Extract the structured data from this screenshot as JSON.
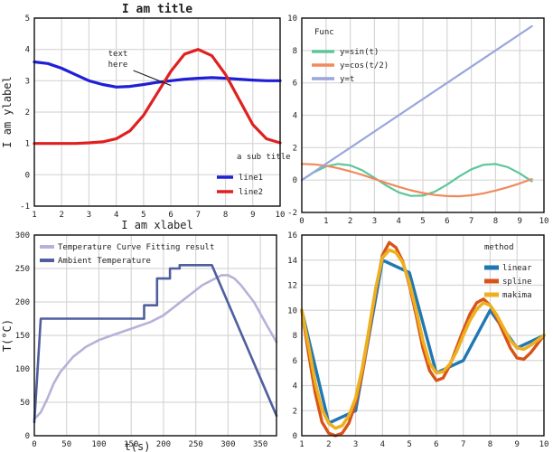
{
  "chart_data": [
    {
      "type": "line",
      "title": "I am title",
      "xlabel": "I am xlabel",
      "ylabel": "I am ylabel",
      "subtitle": "a sub title",
      "xlim": [
        1,
        10
      ],
      "ylim": [
        -1,
        5
      ],
      "xticks": [
        1,
        2,
        3,
        4,
        5,
        6,
        7,
        8,
        9,
        10
      ],
      "yticks": [
        -1,
        0,
        1,
        2,
        3,
        4,
        5
      ],
      "grid": true,
      "legend_position": "bottom-right",
      "annotation": {
        "text": [
          "text",
          "here"
        ],
        "x": 3.9,
        "y": 3.5,
        "arrow_to": [
          6.0,
          2.85
        ]
      },
      "series": [
        {
          "name": "line1",
          "color": "#1f1fd6",
          "x": [
            1,
            1.5,
            2,
            2.5,
            3,
            3.5,
            4,
            4.5,
            5,
            5.5,
            6,
            6.5,
            7,
            7.5,
            8,
            8.5,
            9,
            9.5,
            10
          ],
          "y": [
            3.6,
            3.55,
            3.4,
            3.2,
            3.0,
            2.88,
            2.8,
            2.82,
            2.88,
            2.95,
            3.0,
            3.05,
            3.08,
            3.1,
            3.08,
            3.05,
            3.02,
            3.0,
            3.0
          ]
        },
        {
          "name": "line2",
          "color": "#e02020",
          "x": [
            1,
            1.5,
            2,
            2.5,
            3,
            3.5,
            4,
            4.5,
            5,
            5.5,
            6,
            6.5,
            7,
            7.5,
            8,
            8.5,
            9,
            9.5,
            10
          ],
          "y": [
            1.0,
            1.0,
            1.0,
            1.0,
            1.02,
            1.05,
            1.15,
            1.4,
            1.9,
            2.6,
            3.3,
            3.85,
            4.0,
            3.8,
            3.2,
            2.4,
            1.6,
            1.15,
            1.02
          ]
        }
      ]
    },
    {
      "type": "line",
      "title": "",
      "legend_title": "Func",
      "xlim": [
        0,
        10
      ],
      "ylim": [
        -2,
        10
      ],
      "xticks": [
        0,
        1,
        2,
        3,
        4,
        5,
        6,
        7,
        8,
        9,
        10
      ],
      "yticks": [
        -2,
        0,
        2,
        4,
        6,
        8,
        10
      ],
      "grid": true,
      "legend_position": "top-left",
      "series": [
        {
          "name": "y=sin(t)",
          "color": "#5ec79a",
          "x": [
            0,
            0.5,
            1,
            1.5,
            2,
            2.5,
            3,
            3.5,
            4,
            4.5,
            5,
            5.5,
            6,
            6.5,
            7,
            7.5,
            8,
            8.5,
            9,
            9.5
          ],
          "y": [
            0,
            0.48,
            0.84,
            1.0,
            0.91,
            0.6,
            0.14,
            -0.35,
            -0.76,
            -0.98,
            -0.96,
            -0.71,
            -0.28,
            0.22,
            0.66,
            0.94,
            0.99,
            0.8,
            0.41,
            -0.08
          ]
        },
        {
          "name": "y=cos(t/2)",
          "color": "#f08a5d",
          "x": [
            0,
            0.5,
            1,
            1.5,
            2,
            2.5,
            3,
            3.5,
            4,
            4.5,
            5,
            5.5,
            6,
            6.5,
            7,
            7.5,
            8,
            8.5,
            9,
            9.5
          ],
          "y": [
            1,
            0.97,
            0.88,
            0.73,
            0.54,
            0.32,
            0.07,
            -0.18,
            -0.42,
            -0.63,
            -0.8,
            -0.92,
            -0.99,
            -1.0,
            -0.94,
            -0.82,
            -0.65,
            -0.45,
            -0.21,
            0.06
          ]
        },
        {
          "name": "y=t",
          "color": "#9aa6dc",
          "x": [
            0,
            9.5
          ],
          "y": [
            0,
            9.5
          ]
        }
      ]
    },
    {
      "type": "line",
      "title": "",
      "xlabel": "t(s)",
      "ylabel": "T(°C)",
      "xlim": [
        0,
        375
      ],
      "ylim": [
        0,
        300
      ],
      "xticks": [
        0,
        50,
        100,
        150,
        200,
        250,
        300,
        350
      ],
      "yticks": [
        0,
        50,
        100,
        150,
        200,
        250,
        300
      ],
      "grid": true,
      "legend_position": "top-left",
      "series": [
        {
          "name": "Temperature Curve Fitting result",
          "color": "#b7b1d8",
          "x": [
            0,
            10,
            20,
            30,
            40,
            60,
            80,
            100,
            120,
            150,
            180,
            200,
            220,
            240,
            260,
            280,
            290,
            300,
            310,
            320,
            340,
            360,
            375
          ],
          "y": [
            25,
            35,
            55,
            78,
            95,
            118,
            133,
            143,
            150,
            160,
            170,
            180,
            195,
            210,
            225,
            235,
            240,
            240,
            235,
            225,
            200,
            165,
            140
          ]
        },
        {
          "name": "Ambient Temperature",
          "color": "#4f5e9e",
          "x": [
            0,
            10,
            20,
            170,
            170,
            190,
            190,
            210,
            210,
            225,
            225,
            275,
            275,
            375
          ],
          "y": [
            20,
            175,
            175,
            175,
            195,
            195,
            235,
            235,
            250,
            250,
            255,
            255,
            255,
            30
          ]
        }
      ]
    },
    {
      "type": "line",
      "title": "",
      "legend_title": "method",
      "xlim": [
        1,
        10
      ],
      "ylim": [
        0,
        16
      ],
      "xticks": [
        1,
        2,
        3,
        4,
        5,
        6,
        7,
        8,
        9,
        10
      ],
      "yticks": [
        0,
        2,
        4,
        6,
        8,
        10,
        12,
        14,
        16
      ],
      "grid": true,
      "legend_position": "top-right",
      "series": [
        {
          "name": "linear",
          "color": "#1f77b4",
          "x": [
            1,
            2,
            3,
            4,
            5,
            6,
            7,
            8,
            9,
            10
          ],
          "y": [
            10,
            1,
            2,
            14,
            13,
            5,
            6,
            10,
            7,
            8
          ]
        },
        {
          "name": "spline",
          "color": "#d95319",
          "x": [
            1,
            1.25,
            1.5,
            1.75,
            2,
            2.25,
            2.5,
            2.75,
            3,
            3.25,
            3.5,
            3.75,
            4,
            4.25,
            4.5,
            4.75,
            5,
            5.25,
            5.5,
            5.75,
            6,
            6.25,
            6.5,
            6.75,
            7,
            7.25,
            7.5,
            7.75,
            8,
            8.25,
            8.5,
            8.75,
            9,
            9.25,
            9.5,
            9.75,
            10
          ],
          "y": [
            10,
            6.6,
            3.4,
            1.1,
            0.2,
            0.0,
            0.2,
            1.0,
            2.6,
            5.0,
            8.2,
            11.6,
            14.4,
            15.4,
            15.0,
            13.9,
            12.0,
            9.6,
            7.0,
            5.2,
            4.4,
            4.6,
            5.6,
            7.0,
            8.4,
            9.7,
            10.6,
            10.9,
            10.4,
            9.4,
            8.2,
            7.0,
            6.2,
            6.1,
            6.6,
            7.3,
            8.0
          ]
        },
        {
          "name": "makima",
          "color": "#edb120",
          "x": [
            1,
            1.25,
            1.5,
            1.75,
            2,
            2.25,
            2.5,
            2.75,
            3,
            3.25,
            3.5,
            3.75,
            4,
            4.25,
            4.5,
            4.75,
            5,
            5.25,
            5.5,
            5.75,
            6,
            6.25,
            6.5,
            6.75,
            7,
            7.25,
            7.5,
            7.75,
            8,
            8.25,
            8.5,
            8.75,
            9,
            9.25,
            9.5,
            9.75,
            10
          ],
          "y": [
            10,
            7.2,
            4.2,
            2.1,
            1.0,
            0.6,
            0.8,
            1.6,
            3.0,
            5.4,
            8.5,
            11.8,
            14.2,
            14.8,
            14.6,
            13.8,
            12.2,
            10.0,
            7.6,
            5.8,
            5.0,
            5.1,
            5.7,
            6.7,
            8.0,
            9.2,
            10.1,
            10.6,
            10.4,
            9.6,
            8.6,
            7.6,
            7.0,
            6.9,
            7.2,
            7.6,
            8.0
          ]
        }
      ]
    }
  ]
}
